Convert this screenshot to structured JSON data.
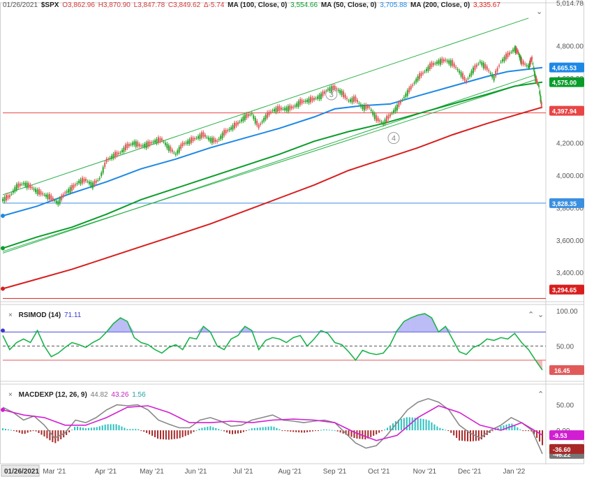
{
  "header": {
    "date": "01/26/2021",
    "symbol": "$SPX",
    "open": "O3,862.96",
    "high": "H3,870.90",
    "low": "L3,847.78",
    "close": "C3,849.62",
    "change": "Δ-5.74",
    "ma100_label": "MA (100, Close, 0)",
    "ma100_value": "3,554.66",
    "ma50_label": "MA (50, Close, 0)",
    "ma50_value": "3,705.88",
    "ma200_label": "MA (200, Close, 0)",
    "ma200_value": "3,335.67"
  },
  "colors": {
    "up": "#2aa52a",
    "down": "#e05a5a",
    "ma100": "#1e88e5",
    "ma50": "#0a9c2a",
    "ma200": "#d81e1e",
    "channel": "#2bb14a",
    "rsi": "#19b34a",
    "macd_line": "#888888",
    "signal_line": "#d21ed2",
    "hist_pos": "#2bbfbf",
    "hist_neg": "#a82828",
    "price_line_red": "#e84545",
    "price_line_blue": "#3a8fe0"
  },
  "rsi_legend": {
    "label": "RSIMOD (14)",
    "value": "71.11"
  },
  "macd_legend": {
    "label": "MACDEXP (12, 26, 9)",
    "v1": "44.82",
    "v2": "43.26",
    "v3": "1.56"
  },
  "chart_data": {
    "type": "line",
    "price_axis": {
      "ylim": [
        3220,
        5030
      ],
      "ticks": [
        "3,400.00",
        "3,600.00",
        "3,800.00",
        "4,000.00",
        "4,200.00",
        "4,400.00",
        "4,600.00",
        "4,800.00"
      ],
      "top_label": "5,014.78"
    },
    "x_labels": [
      "01/26/2021",
      "Mar '21",
      "Apr '21",
      "May '21",
      "Jun '21",
      "Jul '21",
      "Aug '21",
      "Sep '21",
      "Oct '21",
      "Nov '21",
      "Dec '21",
      "Jan '22"
    ],
    "annotations": [
      "3",
      "4"
    ],
    "price_tags": [
      {
        "label": "4,665.53",
        "value": 4665.53,
        "color": "#1e88e5"
      },
      {
        "label": "4,575.00",
        "value": 4575.0,
        "color": "#0a9c2a"
      },
      {
        "label": "4,397.94",
        "value": 4397.94,
        "color": "#e84545"
      },
      {
        "label": "3,828.35",
        "value": 3828.35,
        "color": "#3a8fe0"
      },
      {
        "label": "3,294.65",
        "value": 3294.65,
        "color": "#d81e1e"
      }
    ],
    "hlines": [
      {
        "value": 4385,
        "color": "#e84545"
      },
      {
        "value": 3828.35,
        "color": "#3a8fe0"
      },
      {
        "value": 3240,
        "color": "#d81e1e"
      }
    ],
    "series": [
      {
        "name": "$SPX",
        "points": [
          [
            0,
            3849
          ],
          [
            10,
            3870
          ],
          [
            20,
            3930
          ],
          [
            30,
            3950
          ],
          [
            40,
            3930
          ],
          [
            50,
            3900
          ],
          [
            60,
            3880
          ],
          [
            70,
            3860
          ],
          [
            80,
            3830
          ],
          [
            90,
            3890
          ],
          [
            100,
            3920
          ],
          [
            110,
            3960
          ],
          [
            120,
            3970
          ],
          [
            130,
            3940
          ],
          [
            140,
            3980
          ],
          [
            150,
            4090
          ],
          [
            160,
            4120
          ],
          [
            170,
            4140
          ],
          [
            180,
            4180
          ],
          [
            190,
            4200
          ],
          [
            200,
            4180
          ],
          [
            210,
            4190
          ],
          [
            220,
            4210
          ],
          [
            230,
            4220
          ],
          [
            240,
            4170
          ],
          [
            250,
            4130
          ],
          [
            260,
            4190
          ],
          [
            270,
            4210
          ],
          [
            280,
            4230
          ],
          [
            290,
            4250
          ],
          [
            300,
            4220
          ],
          [
            310,
            4210
          ],
          [
            320,
            4260
          ],
          [
            330,
            4290
          ],
          [
            340,
            4320
          ],
          [
            350,
            4360
          ],
          [
            360,
            4380
          ],
          [
            370,
            4300
          ],
          [
            380,
            4360
          ],
          [
            390,
            4400
          ],
          [
            400,
            4410
          ],
          [
            410,
            4410
          ],
          [
            420,
            4420
          ],
          [
            430,
            4450
          ],
          [
            440,
            4460
          ],
          [
            450,
            4470
          ],
          [
            460,
            4490
          ],
          [
            470,
            4530
          ],
          [
            480,
            4540
          ],
          [
            490,
            4510
          ],
          [
            500,
            4460
          ],
          [
            510,
            4470
          ],
          [
            520,
            4420
          ],
          [
            530,
            4420
          ],
          [
            540,
            4350
          ],
          [
            550,
            4320
          ],
          [
            560,
            4370
          ],
          [
            570,
            4420
          ],
          [
            580,
            4480
          ],
          [
            590,
            4540
          ],
          [
            600,
            4600
          ],
          [
            610,
            4640
          ],
          [
            620,
            4680
          ],
          [
            630,
            4700
          ],
          [
            640,
            4710
          ],
          [
            650,
            4690
          ],
          [
            660,
            4640
          ],
          [
            670,
            4580
          ],
          [
            680,
            4650
          ],
          [
            690,
            4700
          ],
          [
            700,
            4660
          ],
          [
            710,
            4600
          ],
          [
            720,
            4700
          ],
          [
            730,
            4740
          ],
          [
            740,
            4780
          ],
          [
            745,
            4760
          ],
          [
            750,
            4700
          ],
          [
            760,
            4670
          ],
          [
            765,
            4720
          ],
          [
            770,
            4600
          ],
          [
            775,
            4550
          ],
          [
            780,
            4398
          ]
        ]
      },
      {
        "name": "MA 100",
        "points": [
          [
            0,
            3750
          ],
          [
            50,
            3810
          ],
          [
            100,
            3890
          ],
          [
            150,
            3960
          ],
          [
            200,
            4040
          ],
          [
            250,
            4100
          ],
          [
            300,
            4170
          ],
          [
            350,
            4230
          ],
          [
            400,
            4290
          ],
          [
            450,
            4360
          ],
          [
            480,
            4410
          ],
          [
            520,
            4430
          ],
          [
            560,
            4440
          ],
          [
            600,
            4490
          ],
          [
            650,
            4550
          ],
          [
            700,
            4610
          ],
          [
            730,
            4640
          ],
          [
            760,
            4655
          ],
          [
            780,
            4665
          ]
        ]
      },
      {
        "name": "MA 50",
        "points": [
          [
            0,
            3550
          ],
          [
            50,
            3620
          ],
          [
            100,
            3680
          ],
          [
            150,
            3760
          ],
          [
            200,
            3850
          ],
          [
            250,
            3920
          ],
          [
            300,
            3990
          ],
          [
            350,
            4060
          ],
          [
            400,
            4130
          ],
          [
            450,
            4210
          ],
          [
            500,
            4270
          ],
          [
            550,
            4320
          ],
          [
            600,
            4380
          ],
          [
            650,
            4440
          ],
          [
            700,
            4500
          ],
          [
            740,
            4550
          ],
          [
            780,
            4575
          ]
        ]
      },
      {
        "name": "MA 200",
        "points": [
          [
            0,
            3300
          ],
          [
            50,
            3360
          ],
          [
            100,
            3420
          ],
          [
            150,
            3490
          ],
          [
            200,
            3560
          ],
          [
            250,
            3630
          ],
          [
            300,
            3700
          ],
          [
            350,
            3780
          ],
          [
            400,
            3860
          ],
          [
            450,
            3940
          ],
          [
            500,
            4030
          ],
          [
            550,
            4100
          ],
          [
            600,
            4170
          ],
          [
            650,
            4250
          ],
          [
            700,
            4320
          ],
          [
            740,
            4370
          ],
          [
            780,
            4420
          ]
        ]
      }
    ],
    "channel_lines": [
      {
        "from": [
          0,
          3880
        ],
        "to": [
          760,
          4970
        ]
      },
      {
        "from": [
          0,
          3530
        ],
        "to": [
          770,
          4590
        ]
      },
      {
        "from": [
          0,
          3520
        ],
        "to": [
          770,
          4620
        ]
      }
    ],
    "rsi": {
      "ylim": [
        0,
        105
      ],
      "ticks": [
        "100.00",
        "50.00"
      ],
      "upper": 70,
      "lower": 30,
      "last_label": "16.45",
      "values": [
        [
          0,
          65
        ],
        [
          10,
          45
        ],
        [
          20,
          55
        ],
        [
          30,
          60
        ],
        [
          40,
          55
        ],
        [
          50,
          72
        ],
        [
          60,
          50
        ],
        [
          70,
          35
        ],
        [
          80,
          40
        ],
        [
          90,
          48
        ],
        [
          100,
          55
        ],
        [
          110,
          52
        ],
        [
          120,
          48
        ],
        [
          130,
          55
        ],
        [
          140,
          60
        ],
        [
          150,
          70
        ],
        [
          160,
          82
        ],
        [
          170,
          90
        ],
        [
          180,
          85
        ],
        [
          190,
          62
        ],
        [
          200,
          55
        ],
        [
          210,
          52
        ],
        [
          220,
          45
        ],
        [
          230,
          40
        ],
        [
          240,
          48
        ],
        [
          250,
          52
        ],
        [
          260,
          45
        ],
        [
          270,
          62
        ],
        [
          280,
          60
        ],
        [
          290,
          78
        ],
        [
          300,
          70
        ],
        [
          310,
          50
        ],
        [
          320,
          45
        ],
        [
          330,
          60
        ],
        [
          340,
          65
        ],
        [
          350,
          78
        ],
        [
          360,
          72
        ],
        [
          370,
          45
        ],
        [
          380,
          58
        ],
        [
          390,
          62
        ],
        [
          400,
          60
        ],
        [
          410,
          55
        ],
        [
          420,
          62
        ],
        [
          430,
          65
        ],
        [
          440,
          50
        ],
        [
          450,
          60
        ],
        [
          460,
          72
        ],
        [
          470,
          68
        ],
        [
          480,
          55
        ],
        [
          490,
          52
        ],
        [
          500,
          42
        ],
        [
          510,
          30
        ],
        [
          520,
          44
        ],
        [
          530,
          40
        ],
        [
          540,
          38
        ],
        [
          550,
          40
        ],
        [
          560,
          52
        ],
        [
          570,
          72
        ],
        [
          580,
          85
        ],
        [
          590,
          90
        ],
        [
          600,
          94
        ],
        [
          610,
          96
        ],
        [
          620,
          90
        ],
        [
          630,
          70
        ],
        [
          640,
          78
        ],
        [
          650,
          60
        ],
        [
          660,
          42
        ],
        [
          670,
          38
        ],
        [
          680,
          48
        ],
        [
          690,
          52
        ],
        [
          700,
          60
        ],
        [
          710,
          58
        ],
        [
          720,
          62
        ],
        [
          730,
          60
        ],
        [
          740,
          68
        ],
        [
          750,
          55
        ],
        [
          760,
          45
        ],
        [
          770,
          30
        ],
        [
          780,
          16
        ]
      ]
    },
    "macd": {
      "ylim": [
        -60,
        85
      ],
      "ticks": [
        "50.00",
        "0.00"
      ],
      "labels": [
        "-9.53",
        "-46.22",
        "-36.60"
      ],
      "macd_values": [
        [
          0,
          45
        ],
        [
          15,
          35
        ],
        [
          30,
          20
        ],
        [
          45,
          28
        ],
        [
          60,
          10
        ],
        [
          75,
          -15
        ],
        [
          90,
          -5
        ],
        [
          105,
          20
        ],
        [
          120,
          15
        ],
        [
          135,
          25
        ],
        [
          150,
          40
        ],
        [
          165,
          50
        ],
        [
          180,
          48
        ],
        [
          195,
          50
        ],
        [
          210,
          40
        ],
        [
          225,
          20
        ],
        [
          240,
          12
        ],
        [
          255,
          5
        ],
        [
          270,
          5
        ],
        [
          285,
          20
        ],
        [
          300,
          25
        ],
        [
          315,
          18
        ],
        [
          330,
          8
        ],
        [
          345,
          10
        ],
        [
          360,
          20
        ],
        [
          375,
          25
        ],
        [
          390,
          30
        ],
        [
          405,
          20
        ],
        [
          420,
          18
        ],
        [
          435,
          15
        ],
        [
          450,
          18
        ],
        [
          465,
          20
        ],
        [
          480,
          15
        ],
        [
          495,
          -5
        ],
        [
          510,
          -25
        ],
        [
          525,
          -35
        ],
        [
          540,
          -30
        ],
        [
          555,
          -10
        ],
        [
          570,
          15
        ],
        [
          585,
          40
        ],
        [
          600,
          55
        ],
        [
          615,
          62
        ],
        [
          630,
          55
        ],
        [
          645,
          40
        ],
        [
          660,
          10
        ],
        [
          675,
          -5
        ],
        [
          690,
          -15
        ],
        [
          705,
          0
        ],
        [
          720,
          10
        ],
        [
          735,
          25
        ],
        [
          750,
          15
        ],
        [
          765,
          0
        ],
        [
          780,
          -46
        ]
      ],
      "signal_values": [
        [
          0,
          40
        ],
        [
          30,
          30
        ],
        [
          60,
          25
        ],
        [
          90,
          10
        ],
        [
          120,
          10
        ],
        [
          150,
          25
        ],
        [
          180,
          45
        ],
        [
          210,
          48
        ],
        [
          240,
          35
        ],
        [
          270,
          15
        ],
        [
          300,
          15
        ],
        [
          330,
          18
        ],
        [
          360,
          15
        ],
        [
          390,
          20
        ],
        [
          420,
          22
        ],
        [
          450,
          20
        ],
        [
          480,
          15
        ],
        [
          510,
          -5
        ],
        [
          540,
          -20
        ],
        [
          570,
          -10
        ],
        [
          600,
          25
        ],
        [
          630,
          48
        ],
        [
          660,
          35
        ],
        [
          690,
          10
        ],
        [
          720,
          0
        ],
        [
          750,
          15
        ],
        [
          780,
          -9.5
        ]
      ]
    }
  }
}
